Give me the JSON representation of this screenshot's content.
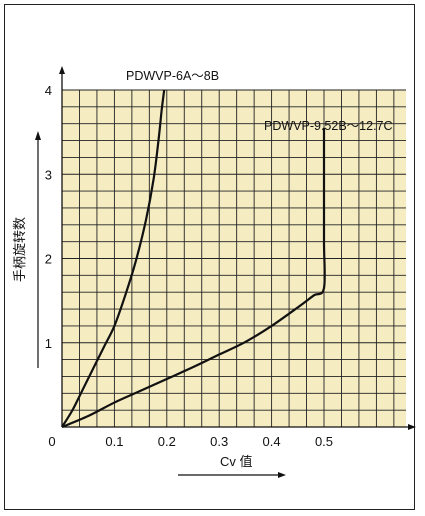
{
  "chart_data": {
    "type": "line",
    "xlabel": "Cv 值",
    "ylabel": "手柄旋转数",
    "xlim": [
      0,
      0.6
    ],
    "ylim": [
      0,
      4
    ],
    "x_ticks": [
      "0",
      "0.1",
      "0.2",
      "0.3",
      "0.4",
      "0.5"
    ],
    "y_ticks": [
      "0",
      "1",
      "2",
      "3",
      "4"
    ],
    "grid": true,
    "grid_color": "#f5ecc2",
    "series": [
      {
        "name": "PDWVP-6A～8B",
        "points": [
          [
            0,
            0
          ],
          [
            0.02,
            0.2
          ],
          [
            0.04,
            0.45
          ],
          [
            0.06,
            0.7
          ],
          [
            0.08,
            0.95
          ],
          [
            0.1,
            1.2
          ],
          [
            0.12,
            1.55
          ],
          [
            0.14,
            1.95
          ],
          [
            0.16,
            2.45
          ],
          [
            0.175,
            2.95
          ],
          [
            0.185,
            3.45
          ],
          [
            0.19,
            3.75
          ],
          [
            0.195,
            4.0
          ]
        ]
      },
      {
        "name": "PDWVP-9.52B～12.7C",
        "points": [
          [
            0,
            0
          ],
          [
            0.05,
            0.13
          ],
          [
            0.1,
            0.29
          ],
          [
            0.15,
            0.43
          ],
          [
            0.2,
            0.57
          ],
          [
            0.25,
            0.71
          ],
          [
            0.3,
            0.86
          ],
          [
            0.35,
            1.01
          ],
          [
            0.4,
            1.2
          ],
          [
            0.45,
            1.42
          ],
          [
            0.48,
            1.56
          ],
          [
            0.5,
            1.65
          ],
          [
            0.5,
            2.2
          ],
          [
            0.5,
            3.0
          ],
          [
            0.5,
            3.55
          ]
        ]
      }
    ]
  }
}
